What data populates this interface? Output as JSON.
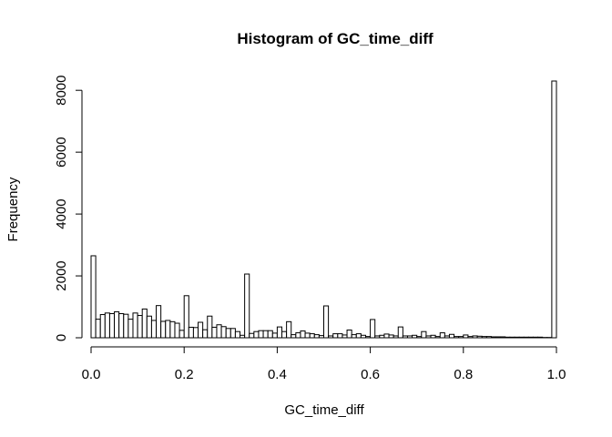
{
  "chart_data": {
    "type": "bar",
    "subtype": "histogram",
    "title": "Histogram of GC_time_diff",
    "xlabel": "GC_time_diff",
    "ylabel": "Frequency",
    "xlim": [
      0,
      1
    ],
    "ylim": [
      0,
      8300
    ],
    "bin_width": 0.01,
    "bin_start": 0.0,
    "x_ticks": [
      "0.0",
      "0.2",
      "0.4",
      "0.6",
      "0.8",
      "1.0"
    ],
    "x_tick_values": [
      0,
      0.2,
      0.4,
      0.6,
      0.8,
      1.0
    ],
    "y_ticks": [
      "0",
      "2000",
      "4000",
      "6000",
      "8000"
    ],
    "y_tick_values": [
      0,
      2000,
      4000,
      6000,
      8000
    ],
    "values": [
      2650,
      600,
      750,
      800,
      780,
      840,
      780,
      760,
      600,
      800,
      720,
      930,
      700,
      560,
      1040,
      530,
      560,
      520,
      470,
      240,
      1360,
      340,
      330,
      500,
      260,
      700,
      340,
      420,
      360,
      300,
      300,
      200,
      80,
      2060,
      140,
      200,
      230,
      230,
      230,
      150,
      350,
      200,
      520,
      100,
      160,
      220,
      150,
      130,
      100,
      70,
      1030,
      60,
      130,
      130,
      90,
      250,
      100,
      130,
      80,
      40,
      590,
      60,
      80,
      120,
      90,
      60,
      350,
      60,
      60,
      80,
      40,
      200,
      60,
      80,
      40,
      160,
      60,
      110,
      40,
      40,
      90,
      40,
      60,
      50,
      40,
      40,
      30,
      30,
      30,
      20,
      20,
      20,
      20,
      20,
      20,
      20,
      20,
      10,
      10,
      8300
    ]
  }
}
